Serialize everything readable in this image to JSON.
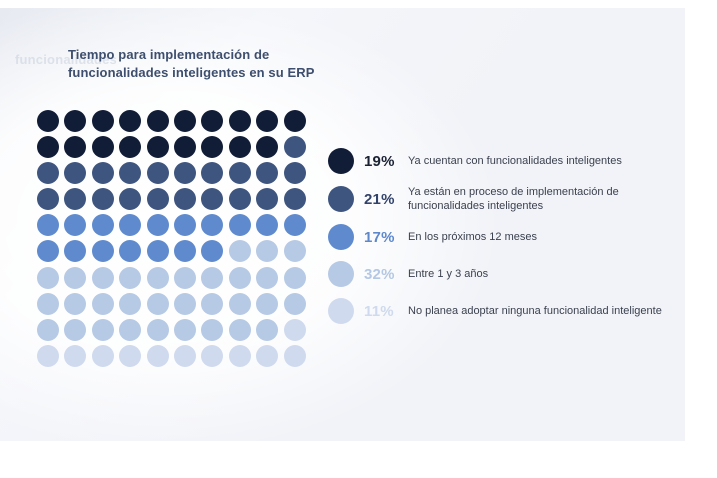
{
  "page": {
    "background": "#ffffff",
    "panel_background": "#f1f3f8",
    "watermark_text": "funcionalidades"
  },
  "chart": {
    "title_lines": [
      "Tiempo para implementación de",
      "funcionalidades inteligentes en su ERP"
    ],
    "title_color": "#3d4e6e"
  },
  "chart_data": {
    "type": "waffle",
    "title": "Tiempo para implementación de funcionalidades inteligentes en su ERP",
    "grid": {
      "rows": 10,
      "cols": 10,
      "total_dots": 100,
      "fill_order": "row-major-from-top-left",
      "dot_shape": "circle"
    },
    "categories": [
      "Ya cuentan con funcionalidades inteligentes",
      "Ya están en proceso de implementación de funcionalidades inteligentes",
      "En los próximos 12 meses",
      "Entre 1 y 3 años",
      "No planea adoptar ninguna funcionalidad inteligente"
    ],
    "values": [
      19,
      21,
      17,
      32,
      11
    ],
    "unit": "%",
    "colors": [
      "#111c36",
      "#3e557f",
      "#5f8bce",
      "#b6c9e5",
      "#cfdaee"
    ],
    "legend_position": "right",
    "grid_lines": false
  },
  "legend": {
    "label_color": "#3b414e",
    "items": [
      {
        "percent": "19%",
        "label": "Ya cuentan con funcionalidades inteligentes",
        "dot_color": "#111c36",
        "percent_color": "#1b2234"
      },
      {
        "percent": "21%",
        "label": "Ya están en proceso de implementación de funcionalidades inteligentes",
        "dot_color": "#3e557f",
        "percent_color": "#32436b"
      },
      {
        "percent": "17%",
        "label": "En los próximos 12 meses",
        "dot_color": "#5f8bce",
        "percent_color": "#5d88cc"
      },
      {
        "percent": "32%",
        "label": "Entre 1 y 3 años",
        "dot_color": "#b6c9e5",
        "percent_color": "#b4c7e4"
      },
      {
        "percent": "11%",
        "label": "No planea adoptar ninguna funcionalidad inteligente",
        "dot_color": "#cfdaee",
        "percent_color": "#cfdaee"
      }
    ]
  }
}
